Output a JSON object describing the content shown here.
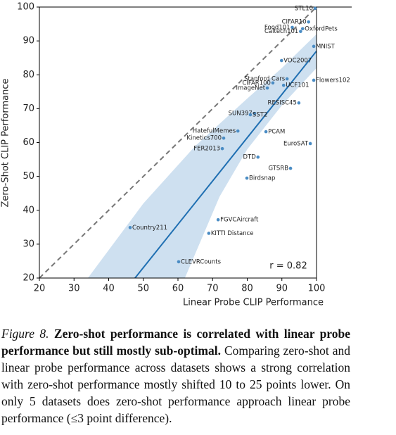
{
  "chart_data": {
    "type": "scatter",
    "xlabel": "Linear Probe CLIP Performance",
    "ylabel": "Zero-Shot CLIP Performance",
    "xlim": [
      20,
      100
    ],
    "ylim": [
      20,
      100
    ],
    "xticks": [
      20,
      30,
      40,
      50,
      60,
      70,
      80,
      90,
      100
    ],
    "yticks": [
      20,
      30,
      40,
      50,
      60,
      70,
      80,
      90,
      100
    ],
    "point_color": "#4a8cc4",
    "line_color": "#1f6fb2",
    "band_color": "#b9d3ea",
    "diagonal_color": "#777777",
    "points": [
      {
        "label": "STL10",
        "x": 99.6,
        "y": 99.6
      },
      {
        "label": "CIFAR10",
        "x": 97.7,
        "y": 95.6
      },
      {
        "label": "Food101",
        "x": 93.0,
        "y": 94.0
      },
      {
        "label": "OxfordPets",
        "x": 96.0,
        "y": 93.6
      },
      {
        "label": "Caltech101",
        "x": 95.4,
        "y": 92.8
      },
      {
        "label": "MNIST",
        "x": 99.2,
        "y": 88.4
      },
      {
        "label": "VOC2007",
        "x": 89.9,
        "y": 84.2
      },
      {
        "label": "Flowers102",
        "x": 99.2,
        "y": 78.4
      },
      {
        "label": "Stanford Cars",
        "x": 91.5,
        "y": 78.8
      },
      {
        "label": "CIFAR100",
        "x": 87.4,
        "y": 77.6
      },
      {
        "label": "UCF101",
        "x": 90.5,
        "y": 76.9
      },
      {
        "label": "ImageNet",
        "x": 85.8,
        "y": 76.1
      },
      {
        "label": "RESISC45",
        "x": 94.9,
        "y": 71.7
      },
      {
        "label": "SUN397",
        "x": 82.1,
        "y": 68.6
      },
      {
        "label": "SST2",
        "x": 80.9,
        "y": 68.2
      },
      {
        "label": "PCAM",
        "x": 85.4,
        "y": 63.2
      },
      {
        "label": "HatefulMemes",
        "x": 77.3,
        "y": 63.4
      },
      {
        "label": "Kinetics700",
        "x": 73.2,
        "y": 61.3
      },
      {
        "label": "EuroSAT",
        "x": 98.2,
        "y": 59.7
      },
      {
        "label": "FER2013",
        "x": 72.8,
        "y": 58.2
      },
      {
        "label": "DTD",
        "x": 83.1,
        "y": 55.7
      },
      {
        "label": "GTSRB",
        "x": 92.5,
        "y": 52.4
      },
      {
        "label": "Birdsnap",
        "x": 79.9,
        "y": 49.5
      },
      {
        "label": "FGVCAircraft",
        "x": 71.6,
        "y": 37.2
      },
      {
        "label": "KITTI Distance",
        "x": 68.9,
        "y": 33.2
      },
      {
        "label": "Country211",
        "x": 46.2,
        "y": 34.9
      },
      {
        "label": "CLEVRCounts",
        "x": 60.2,
        "y": 24.8
      }
    ],
    "fit_line": [
      [
        47.6,
        20
      ],
      [
        100,
        87
      ]
    ],
    "band_upper": [
      [
        34,
        20
      ],
      [
        50,
        42
      ],
      [
        65,
        59
      ],
      [
        80,
        73
      ],
      [
        90,
        82
      ],
      [
        100,
        92
      ]
    ],
    "band_lower": [
      [
        100,
        82
      ],
      [
        90,
        71
      ],
      [
        80,
        58
      ],
      [
        72,
        44
      ],
      [
        62,
        20
      ]
    ],
    "annotation": "r = 0.82"
  },
  "caption": {
    "label": "Figure 8.",
    "bold": "Zero-shot performance is correlated with linear probe performance but still mostly sub-optimal.",
    "text": "Comparing zero-shot and linear probe performance across datasets shows a strong correlation with zero-shot performance mostly shifted 10 to 25 points lower. On only 5 datasets does zero-shot performance approach linear probe performance (≤3 point difference)."
  }
}
